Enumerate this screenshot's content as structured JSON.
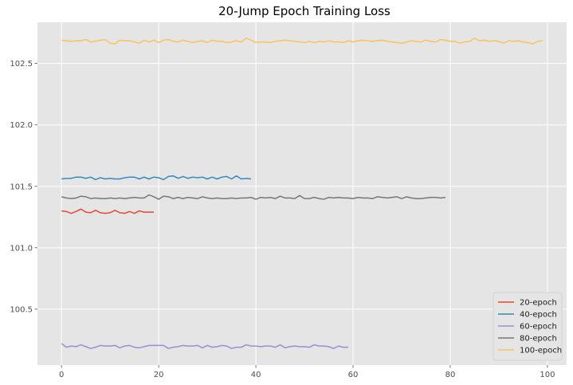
{
  "chart_data": {
    "type": "line",
    "title": "20-Jump Epoch Training Loss",
    "xlabel": "",
    "ylabel": "",
    "xlim": [
      -4.95,
      103.95
    ],
    "ylim": [
      100.045,
      102.835
    ],
    "xticks": [
      0,
      20,
      40,
      60,
      80,
      100
    ],
    "yticks": [
      100.5,
      101.0,
      101.5,
      102.0,
      102.5
    ],
    "ytick_labels": [
      "100.5",
      "101.0",
      "101.5",
      "102.0",
      "102.5"
    ],
    "grid": true,
    "legend_position": "lower right",
    "series": [
      {
        "name": "20-epoch",
        "color": "#E24A33",
        "values": [
          101.3,
          101.295,
          101.28,
          101.295,
          101.315,
          101.29,
          101.285,
          101.305,
          101.285,
          101.28,
          101.285,
          101.305,
          101.285,
          101.28,
          101.295,
          101.28,
          101.3,
          101.29,
          101.29,
          101.29
        ]
      },
      {
        "name": "40-epoch",
        "color": "#348ABD",
        "values": [
          101.56,
          101.565,
          101.565,
          101.575,
          101.575,
          101.565,
          101.575,
          101.555,
          101.57,
          101.56,
          101.565,
          101.56,
          101.56,
          101.57,
          101.575,
          101.575,
          101.56,
          101.575,
          101.56,
          101.575,
          101.57,
          101.555,
          101.58,
          101.585,
          101.565,
          101.58,
          101.565,
          101.575,
          101.57,
          101.575,
          101.56,
          101.575,
          101.56,
          101.575,
          101.58,
          101.56,
          101.585,
          101.56,
          101.565,
          101.56
        ]
      },
      {
        "name": "60-epoch",
        "color": "#988ED5",
        "values": [
          100.22,
          100.19,
          100.2,
          100.195,
          100.21,
          100.195,
          100.18,
          100.19,
          100.205,
          100.2,
          100.2,
          100.205,
          100.185,
          100.2,
          100.205,
          100.19,
          100.185,
          100.195,
          100.205,
          100.205,
          100.205,
          100.205,
          100.18,
          100.19,
          100.195,
          100.205,
          100.2,
          100.2,
          100.205,
          100.185,
          100.205,
          100.19,
          100.195,
          100.205,
          100.2,
          100.18,
          100.19,
          100.19,
          100.21,
          100.2,
          100.2,
          100.195,
          100.2,
          100.2,
          100.19,
          100.21,
          100.185,
          100.195,
          100.2,
          100.195,
          100.195,
          100.19,
          100.21,
          100.2,
          100.2,
          100.195,
          100.18,
          100.2,
          100.19,
          100.19
        ]
      },
      {
        "name": "80-epoch",
        "color": "#777777",
        "values": [
          101.415,
          101.405,
          101.4,
          101.405,
          101.42,
          101.415,
          101.4,
          101.405,
          101.4,
          101.4,
          101.405,
          101.4,
          101.405,
          101.4,
          101.405,
          101.41,
          101.405,
          101.405,
          101.43,
          101.415,
          101.395,
          101.42,
          101.415,
          101.4,
          101.41,
          101.4,
          101.41,
          101.405,
          101.4,
          101.415,
          101.405,
          101.4,
          101.405,
          101.4,
          101.4,
          101.405,
          101.4,
          101.405,
          101.405,
          101.41,
          101.395,
          101.41,
          101.405,
          101.41,
          101.4,
          101.42,
          101.405,
          101.405,
          101.4,
          101.425,
          101.4,
          101.4,
          101.41,
          101.4,
          101.395,
          101.41,
          101.405,
          101.41,
          101.405,
          101.405,
          101.4,
          101.41,
          101.405,
          101.405,
          101.4,
          101.415,
          101.41,
          101.405,
          101.41,
          101.415,
          101.4,
          101.415,
          101.405,
          101.4,
          101.4,
          101.405,
          101.41,
          101.41,
          101.405,
          101.41
        ]
      },
      {
        "name": "100-epoch",
        "color": "#FBC15E",
        "values": [
          102.69,
          102.685,
          102.68,
          102.685,
          102.685,
          102.695,
          102.675,
          102.68,
          102.69,
          102.695,
          102.665,
          102.66,
          102.69,
          102.685,
          102.685,
          102.675,
          102.665,
          102.69,
          102.675,
          102.69,
          102.67,
          102.69,
          102.695,
          102.68,
          102.675,
          102.69,
          102.68,
          102.67,
          102.68,
          102.685,
          102.67,
          102.69,
          102.68,
          102.68,
          102.67,
          102.675,
          102.685,
          102.675,
          102.705,
          102.69,
          102.67,
          102.675,
          102.675,
          102.67,
          102.68,
          102.685,
          102.69,
          102.685,
          102.68,
          102.675,
          102.67,
          102.68,
          102.67,
          102.68,
          102.675,
          102.685,
          102.675,
          102.675,
          102.67,
          102.685,
          102.675,
          102.685,
          102.69,
          102.685,
          102.68,
          102.685,
          102.69,
          102.68,
          102.675,
          102.67,
          102.665,
          102.675,
          102.685,
          102.68,
          102.675,
          102.69,
          102.68,
          102.675,
          102.695,
          102.69,
          102.68,
          102.68,
          102.665,
          102.675,
          102.68,
          102.705,
          102.685,
          102.69,
          102.68,
          102.685,
          102.68,
          102.665,
          102.685,
          102.68,
          102.685,
          102.675,
          102.67,
          102.66,
          102.68,
          102.685
        ]
      }
    ]
  }
}
